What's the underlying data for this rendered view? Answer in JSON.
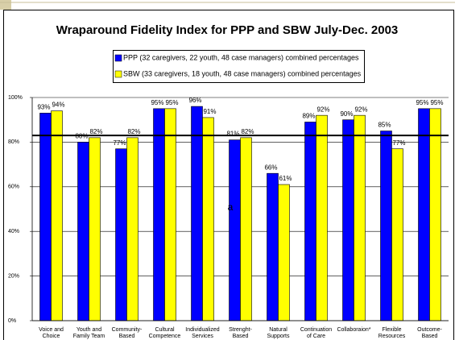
{
  "chart_data": {
    "type": "bar",
    "title": "Wraparound Fidelity Index for PPP and SBW July-Dec. 2003",
    "categories": [
      "Voice and Choice",
      "Youth and Family Team",
      "Community-Based",
      "Cultural Competence",
      "Individualized Services",
      "Strenght-Based",
      "Natural Supports",
      "Continuation of Care",
      "Collaboraion*",
      "Flexible Resources and Funding",
      "Outcome-Based"
    ],
    "series": [
      {
        "name": "PPP (32 caregivers, 22 youth, 48 case managers) combined percentages",
        "color": "#0000ff",
        "values": [
          93,
          80,
          77,
          95,
          96,
          81,
          66,
          89,
          90,
          85,
          95
        ],
        "value_labels": [
          "93%",
          "80%",
          "77%",
          "95%",
          "96%",
          "81%",
          "66%",
          "89%",
          "90%",
          "85%",
          "95%"
        ]
      },
      {
        "name": "SBW (33 caregivers, 18 youth, 48 case managers) combined percentages",
        "color": "#ffff00",
        "values": [
          94,
          82,
          82,
          95,
          91,
          82,
          61,
          92,
          92,
          77,
          95
        ],
        "value_labels": [
          "94%",
          "82%",
          "82%",
          "95%",
          "91%",
          "82%",
          "61%",
          "92%",
          "92%",
          "77%",
          "95%"
        ]
      }
    ],
    "ylim": [
      0,
      100
    ],
    "yticks": [
      {
        "value": 0,
        "label": "0%"
      },
      {
        "value": 20,
        "label": "20%"
      },
      {
        "value": 40,
        "label": "40%"
      },
      {
        "value": 60,
        "label": "60%"
      },
      {
        "value": 80,
        "label": "80%"
      },
      {
        "value": 100,
        "label": "100%"
      }
    ],
    "grid": true,
    "reference_line": 83,
    "annotation": "a"
  }
}
